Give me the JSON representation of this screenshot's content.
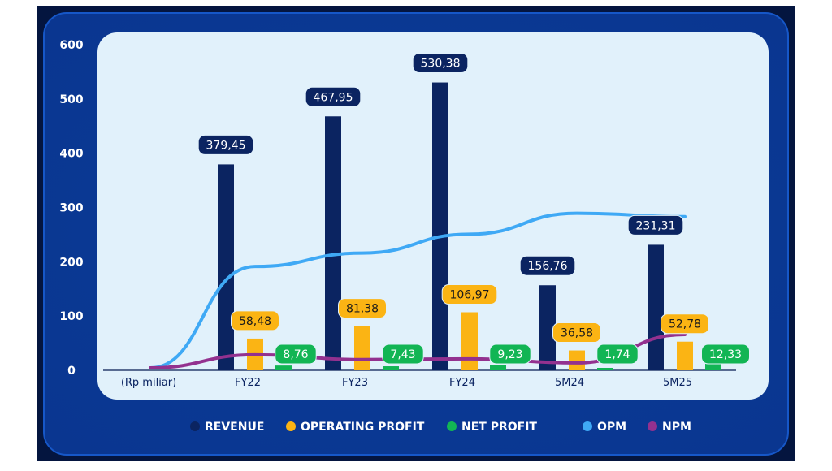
{
  "chart_data": {
    "type": "bar",
    "xlabel": "(Rp miliar)",
    "categories": [
      "FY22",
      "FY23",
      "FY24",
      "5M24",
      "5M25"
    ],
    "ylim": [
      0,
      600
    ],
    "yticks": [
      0,
      100,
      200,
      300,
      400,
      500,
      600
    ],
    "grid": false,
    "legend_placement": "bottom",
    "series": [
      {
        "name": "REVENUE",
        "kind": "bar",
        "color": "#0b2461",
        "values": [
          379.45,
          467.95,
          530.38,
          156.76,
          231.31
        ],
        "labels": [
          "379,45",
          "467,95",
          "530,38",
          "156,76",
          "231,31"
        ]
      },
      {
        "name": "OPERATING PROFIT",
        "kind": "bar",
        "color": "#fbb414",
        "values": [
          58.48,
          81.38,
          106.97,
          36.58,
          52.78
        ],
        "labels": [
          "58,48",
          "81,38",
          "106,97",
          "36,58",
          "52,78"
        ]
      },
      {
        "name": "NET PROFIT",
        "kind": "bar",
        "color": "#12b554",
        "values": [
          8.76,
          7.43,
          9.23,
          1.74,
          12.33
        ],
        "labels": [
          "8,76",
          "7,43",
          "9,23",
          "1,74",
          "12,33"
        ]
      },
      {
        "name": "OPM",
        "kind": "line",
        "color": "#3fa9f5",
        "values_percent": [
          15.4,
          17.4,
          20.2,
          23.3,
          22.8
        ]
      },
      {
        "name": "NPM",
        "kind": "line",
        "color": "#93318f",
        "values_percent": [
          2.3,
          1.6,
          1.7,
          1.1,
          5.3
        ]
      }
    ]
  }
}
